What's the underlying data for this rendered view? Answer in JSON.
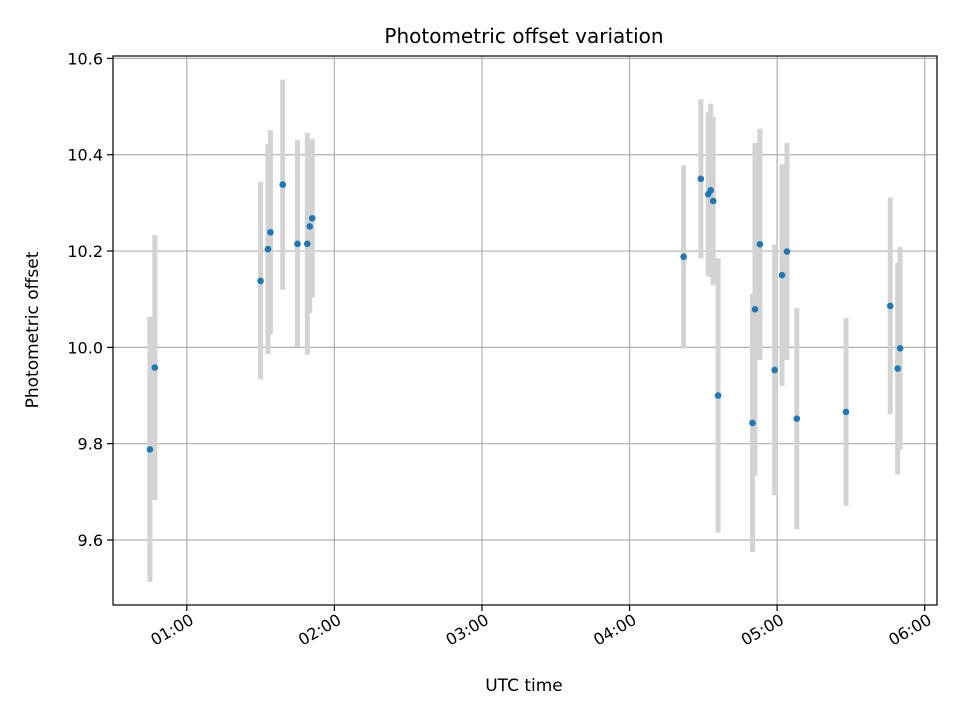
{
  "chart_data": {
    "type": "scatter",
    "title": "Photometric offset variation",
    "xlabel": "UTC time",
    "ylabel": "Photometric offset",
    "x_axis_kind": "time",
    "xlim": [
      "00:30",
      "06:05"
    ],
    "ylim": [
      9.465,
      10.605
    ],
    "grid": true,
    "x_ticks": [
      "01:00",
      "02:00",
      "03:00",
      "04:00",
      "05:00",
      "06:00"
    ],
    "y_ticks": [
      9.6,
      9.8,
      10.0,
      10.2,
      10.4,
      10.6
    ],
    "y_tick_labels": [
      "9.6",
      "9.8",
      "10.0",
      "10.2",
      "10.4",
      "10.6"
    ],
    "colors": {
      "point": "#1f77b4",
      "errorbar": "#d3d3d3",
      "grid": "#b0b0b0"
    },
    "points": [
      {
        "x": "00:45",
        "y": 9.788,
        "err": 0.275
      },
      {
        "x": "00:47",
        "y": 9.958,
        "err": 0.275
      },
      {
        "x": "01:30",
        "y": 10.138,
        "err": 0.205
      },
      {
        "x": "01:33",
        "y": 10.204,
        "err": 0.218
      },
      {
        "x": "01:34",
        "y": 10.239,
        "err": 0.212
      },
      {
        "x": "01:39",
        "y": 10.338,
        "err": 0.218
      },
      {
        "x": "01:45",
        "y": 10.215,
        "err": 0.215
      },
      {
        "x": "01:49",
        "y": 10.215,
        "err": 0.23
      },
      {
        "x": "01:50",
        "y": 10.251,
        "err": 0.18
      },
      {
        "x": "01:51",
        "y": 10.268,
        "err": 0.165
      },
      {
        "x": "04:22",
        "y": 10.188,
        "err": 0.19
      },
      {
        "x": "04:29",
        "y": 10.35,
        "err": 0.165
      },
      {
        "x": "04:32",
        "y": 10.318,
        "err": 0.17
      },
      {
        "x": "04:33",
        "y": 10.326,
        "err": 0.18
      },
      {
        "x": "04:34",
        "y": 10.304,
        "err": 0.175
      },
      {
        "x": "04:36",
        "y": 9.9,
        "err": 0.285
      },
      {
        "x": "04:50",
        "y": 9.843,
        "err": 0.268
      },
      {
        "x": "04:51",
        "y": 10.079,
        "err": 0.345
      },
      {
        "x": "04:53",
        "y": 10.214,
        "err": 0.24
      },
      {
        "x": "04:59",
        "y": 9.953,
        "err": 0.26
      },
      {
        "x": "05:02",
        "y": 10.15,
        "err": 0.23
      },
      {
        "x": "05:04",
        "y": 10.199,
        "err": 0.225
      },
      {
        "x": "05:08",
        "y": 9.852,
        "err": 0.23
      },
      {
        "x": "05:28",
        "y": 9.866,
        "err": 0.195
      },
      {
        "x": "05:46",
        "y": 10.086,
        "err": 0.225
      },
      {
        "x": "05:49",
        "y": 9.956,
        "err": 0.22
      },
      {
        "x": "05:50",
        "y": 9.998,
        "err": 0.21
      }
    ]
  }
}
